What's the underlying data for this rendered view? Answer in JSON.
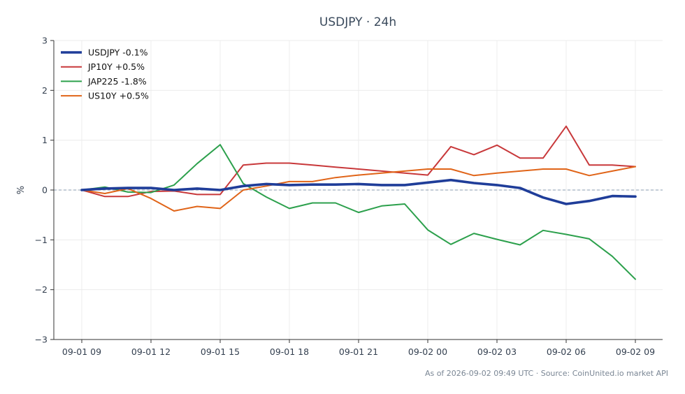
{
  "chart_data": {
    "type": "line",
    "title": "USDJPY · 24h",
    "ylabel": "%",
    "xlabel": "",
    "ylim": [
      -3,
      3
    ],
    "yticks": [
      3,
      2,
      1,
      0,
      -1,
      -2,
      -3
    ],
    "ytick_labels": [
      "3",
      "2",
      "1",
      "0",
      "−1",
      "−2",
      "−3"
    ],
    "xticks": [
      {
        "pos": 0,
        "label": "09-01 09"
      },
      {
        "pos": 3,
        "label": "09-01 12"
      },
      {
        "pos": 6,
        "label": "09-01 15"
      },
      {
        "pos": 9,
        "label": "09-01 18"
      },
      {
        "pos": 12,
        "label": "09-01 21"
      },
      {
        "pos": 15,
        "label": "09-02 00"
      },
      {
        "pos": 18,
        "label": "09-02 03"
      },
      {
        "pos": 21,
        "label": "09-02 06"
      },
      {
        "pos": 24,
        "label": "09-02 09"
      }
    ],
    "x": [
      "09-01 09",
      "09-01 10",
      "09-01 11",
      "09-01 12",
      "09-01 13",
      "09-01 14",
      "09-01 15",
      "09-01 16",
      "09-01 17",
      "09-01 18",
      "09-01 19",
      "09-01 20",
      "09-01 21",
      "09-01 22",
      "09-01 23",
      "09-02 00",
      "09-02 01",
      "09-02 02",
      "09-02 03",
      "09-02 04",
      "09-02 05",
      "09-02 06",
      "09-02 07",
      "09-02 08",
      "09-02 09"
    ],
    "grid": true,
    "zero_line": true,
    "legend_position": "top-left",
    "series": [
      {
        "name": "USDJPY -0.1%",
        "color": "#1f3d99",
        "width": "thick",
        "values": [
          0.0,
          0.03,
          0.04,
          0.04,
          0.0,
          0.03,
          0.0,
          0.08,
          0.12,
          0.1,
          0.11,
          0.11,
          0.12,
          0.1,
          0.1,
          0.15,
          0.2,
          0.14,
          0.1,
          0.04,
          -0.15,
          -0.28,
          -0.22,
          -0.12,
          -0.13
        ]
      },
      {
        "name": "JP10Y +0.5%",
        "color": "#c8383a",
        "width": "normal",
        "values": [
          0.0,
          -0.13,
          -0.13,
          -0.03,
          -0.02,
          -0.09,
          -0.09,
          0.5,
          0.54,
          0.54,
          0.5,
          0.46,
          0.42,
          0.38,
          0.34,
          0.3,
          0.87,
          0.71,
          0.9,
          0.64,
          0.64,
          1.28,
          0.5,
          0.5,
          0.47
        ]
      },
      {
        "name": "JAP225 -1.8%",
        "color": "#2ca04c",
        "width": "normal",
        "values": [
          0.0,
          0.06,
          -0.04,
          -0.05,
          0.1,
          0.53,
          0.91,
          0.13,
          -0.14,
          -0.37,
          -0.26,
          -0.26,
          -0.45,
          -0.32,
          -0.28,
          -0.8,
          -1.09,
          -0.87,
          -0.99,
          -1.1,
          -0.81,
          -0.89,
          -0.98,
          -1.33,
          -1.79
        ]
      },
      {
        "name": "US10Y +0.5%",
        "color": "#e06418",
        "width": "normal",
        "values": [
          0.0,
          -0.07,
          0.03,
          -0.17,
          -0.42,
          -0.33,
          -0.37,
          0.0,
          0.08,
          0.17,
          0.17,
          0.25,
          0.3,
          0.34,
          0.38,
          0.42,
          0.42,
          0.29,
          0.34,
          0.38,
          0.42,
          0.42,
          0.29,
          0.38,
          0.47
        ]
      }
    ]
  },
  "footer": "As of 2026-09-02 09:49 UTC · Source: CoinUnited.io market API"
}
